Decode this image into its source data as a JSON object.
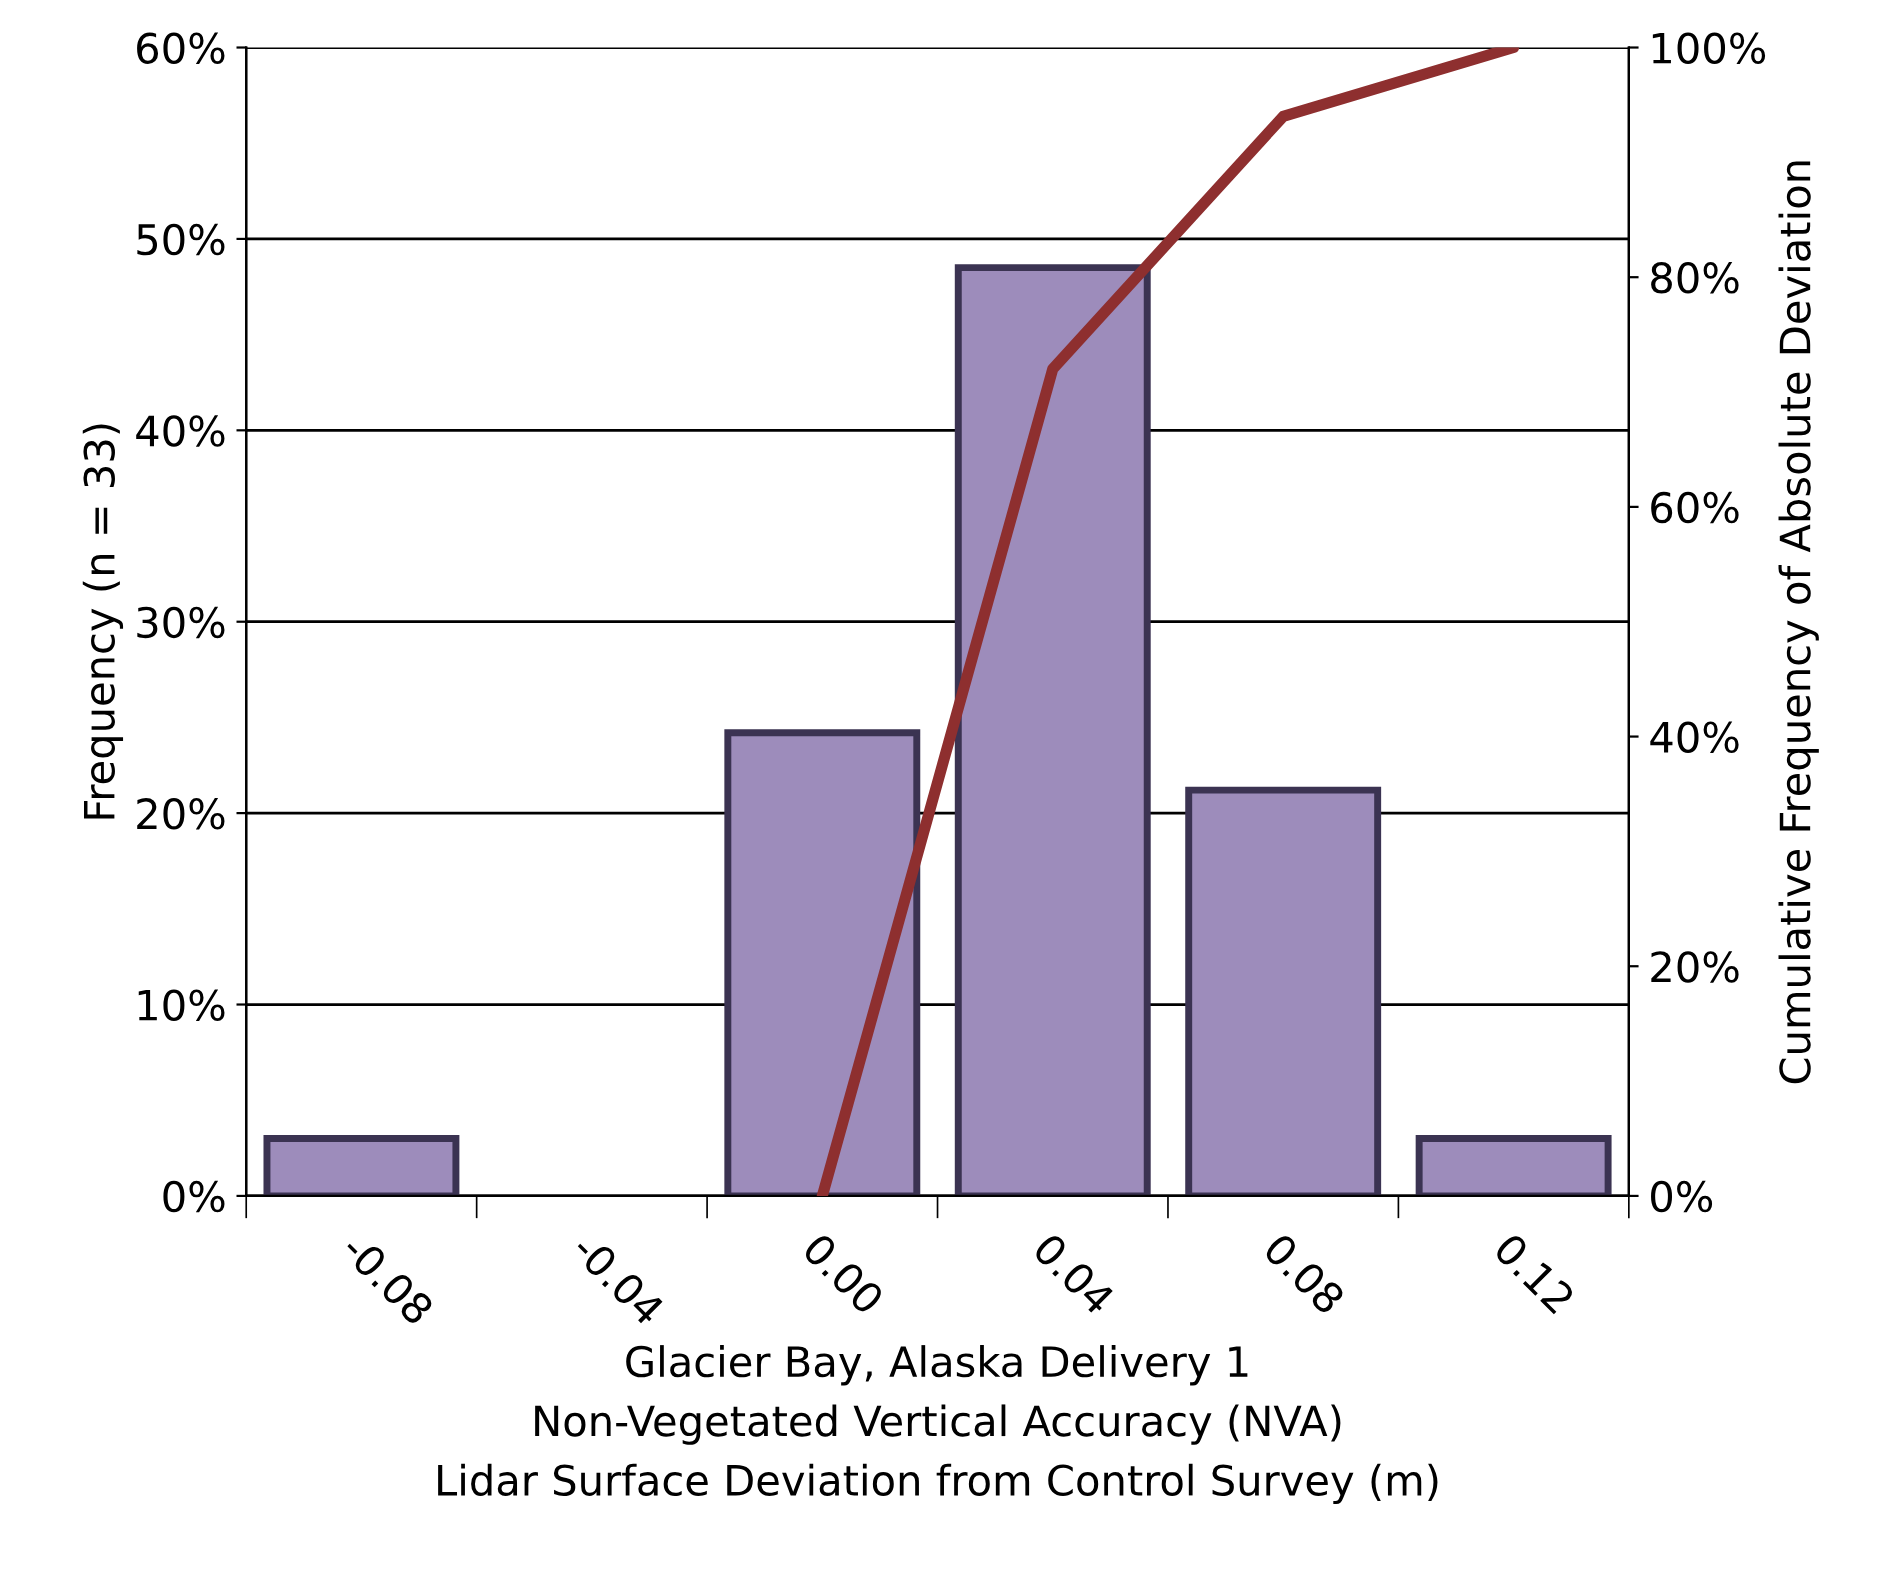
{
  "chart_data": {
    "type": "bar",
    "xlabel": "Glacier Bay, Alaska Delivery 1\nNon-Vegetated Vertical Accuracy (NVA)\nLidar Surface Deviation from Control Survey (m)",
    "ylabel": "Frequency (n = 33)",
    "y2label": "Cumulative Frequency of Absolute Deviation",
    "categories": [
      "-0.08",
      "-0.04",
      "0.00",
      "0.04",
      "0.08",
      "0.12"
    ],
    "series": [
      {
        "color": "#9d8cbb",
        "values": [
          3.0,
          0,
          24.2,
          48.5,
          21.2,
          3.0
        ]
      },
      {
        "type": "line",
        "axis": "y2",
        "color": "#8e2f2f",
        "values": [
          null,
          null,
          0,
          72,
          94,
          100
        ]
      }
    ],
    "ylim": [
      0,
      60
    ],
    "yticks": [
      {
        "value": 0,
        "label": "0%"
      },
      {
        "value": 10,
        "label": "10%"
      },
      {
        "value": 20,
        "label": "20%"
      },
      {
        "value": 30,
        "label": "30%"
      },
      {
        "value": 40,
        "label": "40%"
      },
      {
        "value": 50,
        "label": "50%"
      },
      {
        "value": 60,
        "label": "60%"
      }
    ],
    "y2lim": [
      0,
      100
    ],
    "y2ticks": [
      {
        "value": 0,
        "label": "0%"
      },
      {
        "value": 20,
        "label": "20%"
      },
      {
        "value": 40,
        "label": "40%"
      },
      {
        "value": 60,
        "label": "60%"
      },
      {
        "value": 80,
        "label": "80%"
      },
      {
        "value": 100,
        "label": "100%"
      }
    ],
    "grid": "y"
  }
}
